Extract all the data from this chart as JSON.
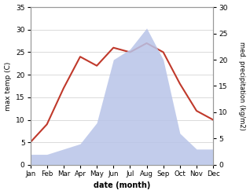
{
  "months": [
    "Jan",
    "Feb",
    "Mar",
    "Apr",
    "May",
    "Jun",
    "Jul",
    "Aug",
    "Sep",
    "Oct",
    "Nov",
    "Dec"
  ],
  "temperature": [
    5,
    9,
    17,
    24,
    22,
    26,
    25,
    27,
    25,
    18,
    12,
    10
  ],
  "precipitation": [
    2,
    2,
    3,
    4,
    8,
    20,
    22,
    26,
    20,
    6,
    3,
    3
  ],
  "temp_color": "#c0392b",
  "precip_fill_color": "#b8c4e8",
  "left_ylabel": "max temp (C)",
  "right_ylabel": "med. precipitation (kg/m2)",
  "xlabel": "date (month)",
  "left_ylim": [
    0,
    35
  ],
  "right_ylim": [
    0,
    30
  ],
  "left_yticks": [
    0,
    5,
    10,
    15,
    20,
    25,
    30,
    35
  ],
  "right_yticks": [
    0,
    5,
    10,
    15,
    20,
    25,
    30
  ],
  "grid_color": "#cccccc"
}
